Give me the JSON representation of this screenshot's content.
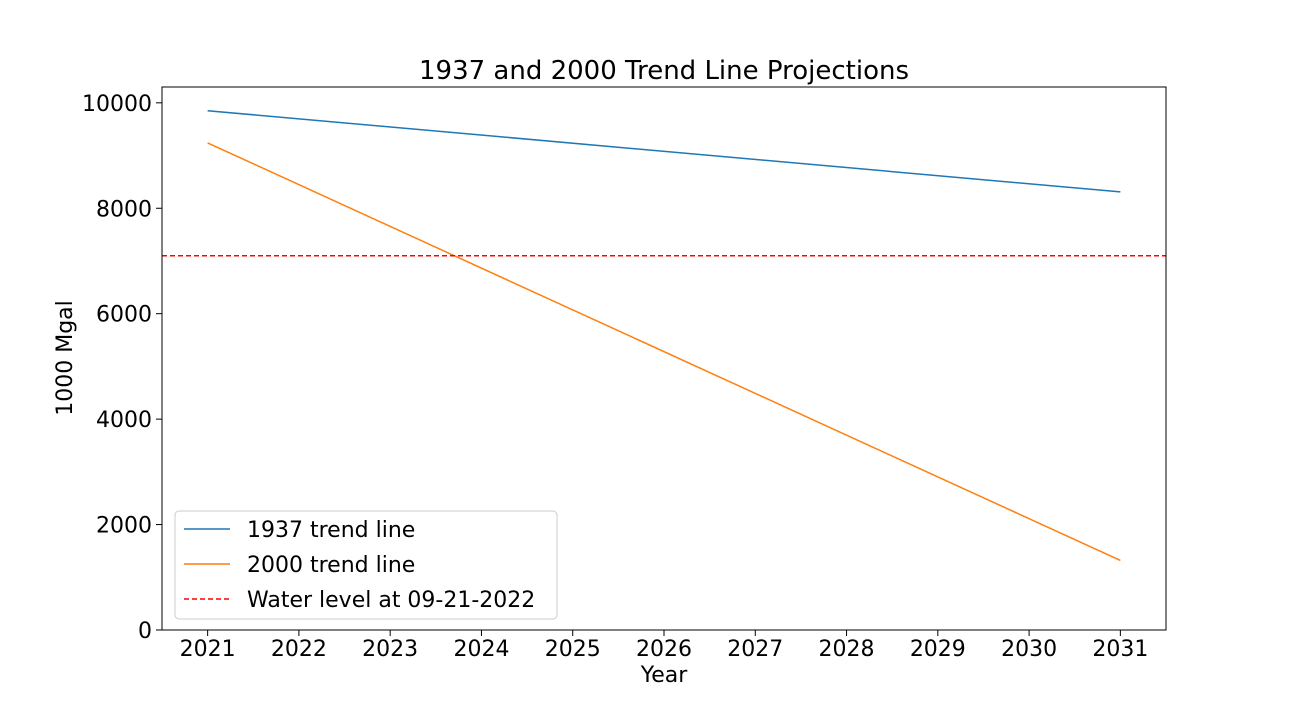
{
  "chart_data": {
    "type": "line",
    "title": "1937 and 2000 Trend Line Projections",
    "xlabel": "Year",
    "ylabel": "1000 Mgal",
    "xlim": [
      2020.5,
      2031.5
    ],
    "ylim": [
      0,
      10300
    ],
    "x_ticks": [
      2021,
      2022,
      2023,
      2024,
      2025,
      2026,
      2027,
      2028,
      2029,
      2030,
      2031
    ],
    "y_ticks": [
      0,
      2000,
      4000,
      6000,
      8000,
      10000
    ],
    "grid": false,
    "legend_position": "lower-left",
    "series": [
      {
        "name": "1937 trend line",
        "color": "#1f77b4",
        "style": "solid",
        "x": [
          2021,
          2031
        ],
        "y": [
          9850,
          8310
        ]
      },
      {
        "name": "2000 trend line",
        "color": "#ff7f0e",
        "style": "solid",
        "x": [
          2021,
          2031
        ],
        "y": [
          9240,
          1320
        ]
      }
    ],
    "hlines": [
      {
        "name": "Water level at 09-21-2022",
        "color": "#ff0000",
        "style": "dashed",
        "y": 7100
      }
    ]
  }
}
